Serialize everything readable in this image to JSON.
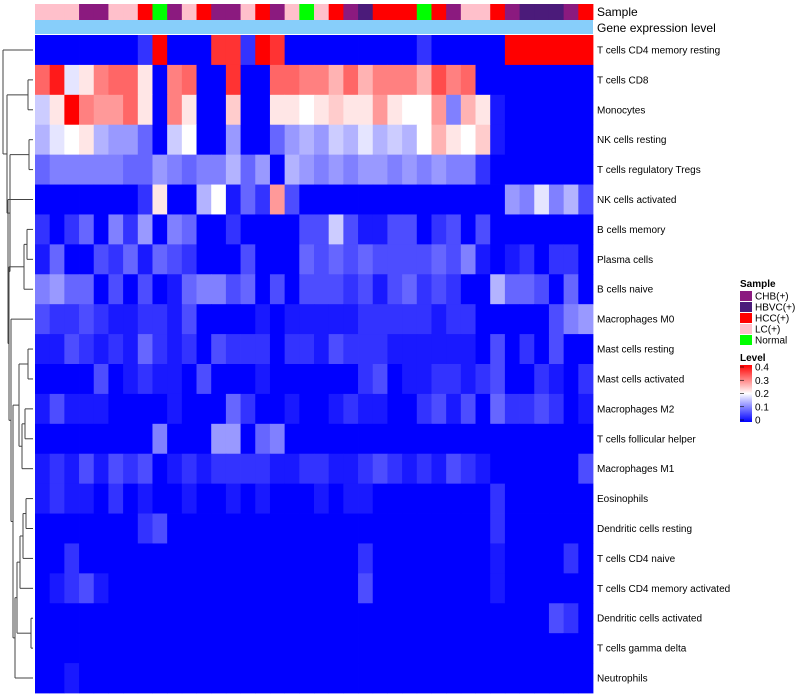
{
  "chart_data": {
    "type": "heatmap",
    "annotation_labels": [
      "Sample",
      "Gene expression level"
    ],
    "rows": [
      "T cells CD4 memory resting",
      "T cells CD8",
      "Monocytes",
      "NK cells resting",
      "T cells regulatory  Tregs",
      "NK cells activated",
      "B cells memory",
      "Plasma cells",
      "B cells naive",
      "Macrophages M0",
      "Mast cells resting",
      "Mast cells activated",
      "Macrophages M2",
      "T cells follicular helper",
      "Macrophages M1",
      "Eosinophils",
      "Dendritic cells resting",
      "T cells CD4 naive",
      "T cells CD4 memory activated",
      "Dendritic cells activated",
      "T cells gamma delta",
      "Neutrophils"
    ],
    "sample_types": [
      "LC(+)",
      "LC(+)",
      "LC(+)",
      "CHB(+)",
      "CHB(+)",
      "LC(+)",
      "LC(+)",
      "HCC(+)",
      "Normal",
      "CHB(+)",
      "LC(+)",
      "HCC(+)",
      "CHB(+)",
      "CHB(+)",
      "LC(+)",
      "HCC(+)",
      "CHB(+)",
      "LC(+)",
      "Normal",
      "LC(+)",
      "HCC(+)",
      "CHB(+)",
      "HBVC(+)",
      "HCC(+)",
      "HCC(+)",
      "HCC(+)",
      "Normal",
      "HCC(+)",
      "CHB(+)",
      "LC(+)",
      "LC(+)",
      "HCC(+)",
      "CHB(+)",
      "HBVC(+)",
      "HBVC(+)",
      "HBVC(+)",
      "CHB(+)",
      "HCC(+)"
    ],
    "values": [
      [
        0.0,
        0.0,
        0.0,
        0.0,
        0.0,
        0.0,
        0.0,
        0.04,
        0.4,
        0.0,
        0.0,
        0.0,
        0.36,
        0.36,
        0.04,
        0.4,
        0.36,
        0.0,
        0.0,
        0.0,
        0.0,
        0.0,
        0.0,
        0.0,
        0.0,
        0.0,
        0.04,
        0.0,
        0.0,
        0.0,
        0.0,
        0.0,
        0.4,
        0.4,
        0.4,
        0.4,
        0.4,
        0.4
      ],
      [
        0.32,
        0.38,
        0.18,
        0.22,
        0.3,
        0.32,
        0.32,
        0.22,
        0.0,
        0.3,
        0.32,
        0.0,
        0.0,
        0.36,
        0.0,
        0.0,
        0.32,
        0.32,
        0.3,
        0.3,
        0.26,
        0.32,
        0.26,
        0.3,
        0.3,
        0.3,
        0.26,
        0.34,
        0.3,
        0.32,
        0.0,
        0.0,
        0.0,
        0.0,
        0.0,
        0.0,
        0.0,
        0.0
      ],
      [
        0.16,
        0.22,
        0.4,
        0.3,
        0.28,
        0.28,
        0.32,
        0.22,
        0.0,
        0.3,
        0.22,
        0.0,
        0.0,
        0.24,
        0.0,
        0.0,
        0.22,
        0.22,
        0.2,
        0.22,
        0.24,
        0.22,
        0.22,
        0.28,
        0.22,
        0.2,
        0.2,
        0.28,
        0.1,
        0.26,
        0.22,
        0.02,
        0.0,
        0.0,
        0.0,
        0.0,
        0.0,
        0.0
      ],
      [
        0.14,
        0.18,
        0.2,
        0.22,
        0.14,
        0.12,
        0.12,
        0.08,
        0.0,
        0.16,
        0.2,
        0.0,
        0.0,
        0.12,
        0.0,
        0.0,
        0.08,
        0.12,
        0.14,
        0.12,
        0.16,
        0.14,
        0.18,
        0.14,
        0.16,
        0.14,
        0.2,
        0.26,
        0.22,
        0.2,
        0.24,
        0.02,
        0.0,
        0.0,
        0.0,
        0.0,
        0.0,
        0.0
      ],
      [
        0.08,
        0.1,
        0.1,
        0.1,
        0.1,
        0.1,
        0.08,
        0.08,
        0.12,
        0.1,
        0.08,
        0.1,
        0.1,
        0.14,
        0.08,
        0.12,
        0.0,
        0.14,
        0.12,
        0.1,
        0.12,
        0.1,
        0.12,
        0.12,
        0.1,
        0.12,
        0.1,
        0.12,
        0.1,
        0.1,
        0.04,
        0.0,
        0.0,
        0.0,
        0.0,
        0.0,
        0.0,
        0.0
      ],
      [
        0.0,
        0.0,
        0.0,
        0.0,
        0.0,
        0.0,
        0.0,
        0.04,
        0.22,
        0.0,
        0.0,
        0.14,
        0.2,
        0.02,
        0.08,
        0.04,
        0.28,
        0.06,
        0.0,
        0.0,
        0.0,
        0.0,
        0.0,
        0.0,
        0.0,
        0.0,
        0.0,
        0.0,
        0.0,
        0.0,
        0.0,
        0.0,
        0.12,
        0.1,
        0.18,
        0.1,
        0.14,
        0.06
      ],
      [
        0.04,
        0.0,
        0.04,
        0.08,
        0.0,
        0.1,
        0.04,
        0.12,
        0.0,
        0.1,
        0.08,
        0.0,
        0.0,
        0.04,
        0.0,
        0.0,
        0.0,
        0.0,
        0.06,
        0.06,
        0.16,
        0.06,
        0.02,
        0.02,
        0.06,
        0.06,
        0.0,
        0.04,
        0.06,
        0.0,
        0.06,
        0.0,
        0.0,
        0.0,
        0.0,
        0.0,
        0.0,
        0.0
      ],
      [
        0.02,
        0.08,
        0.0,
        0.0,
        0.06,
        0.04,
        0.08,
        0.02,
        0.08,
        0.06,
        0.04,
        0.0,
        0.0,
        0.0,
        0.06,
        0.0,
        0.0,
        0.0,
        0.08,
        0.06,
        0.08,
        0.06,
        0.08,
        0.06,
        0.06,
        0.06,
        0.06,
        0.08,
        0.06,
        0.1,
        0.02,
        0.0,
        0.02,
        0.04,
        0.0,
        0.04,
        0.04,
        0.0
      ],
      [
        0.1,
        0.12,
        0.08,
        0.08,
        0.0,
        0.06,
        0.0,
        0.06,
        0.0,
        0.02,
        0.08,
        0.1,
        0.1,
        0.06,
        0.08,
        0.0,
        0.06,
        0.0,
        0.06,
        0.06,
        0.06,
        0.04,
        0.06,
        0.02,
        0.06,
        0.08,
        0.04,
        0.06,
        0.04,
        0.0,
        0.0,
        0.14,
        0.08,
        0.08,
        0.06,
        0.0,
        0.08,
        0.0
      ],
      [
        0.06,
        0.04,
        0.04,
        0.06,
        0.04,
        0.02,
        0.02,
        0.04,
        0.04,
        0.02,
        0.06,
        0.0,
        0.0,
        0.0,
        0.0,
        0.02,
        0.0,
        0.02,
        0.02,
        0.02,
        0.02,
        0.02,
        0.04,
        0.04,
        0.04,
        0.04,
        0.04,
        0.02,
        0.04,
        0.04,
        0.0,
        0.0,
        0.0,
        0.0,
        0.0,
        0.06,
        0.1,
        0.12
      ],
      [
        0.02,
        0.02,
        0.06,
        0.04,
        0.02,
        0.04,
        0.02,
        0.08,
        0.04,
        0.02,
        0.04,
        0.0,
        0.06,
        0.04,
        0.04,
        0.04,
        0.0,
        0.04,
        0.04,
        0.02,
        0.06,
        0.04,
        0.04,
        0.04,
        0.02,
        0.02,
        0.02,
        0.02,
        0.02,
        0.02,
        0.0,
        0.06,
        0.0,
        0.04,
        0.0,
        0.06,
        0.0,
        0.0
      ],
      [
        0.0,
        0.0,
        0.0,
        0.0,
        0.06,
        0.0,
        0.02,
        0.04,
        0.02,
        0.02,
        0.0,
        0.06,
        0.0,
        0.0,
        0.0,
        0.02,
        0.0,
        0.0,
        0.0,
        0.0,
        0.0,
        0.0,
        0.04,
        0.06,
        0.0,
        0.02,
        0.02,
        0.04,
        0.04,
        0.02,
        0.04,
        0.06,
        0.0,
        0.0,
        0.04,
        0.02,
        0.0,
        0.04
      ],
      [
        0.02,
        0.06,
        0.02,
        0.02,
        0.02,
        0.0,
        0.0,
        0.0,
        0.0,
        0.02,
        0.0,
        0.0,
        0.0,
        0.08,
        0.04,
        0.0,
        0.0,
        0.02,
        0.0,
        0.0,
        0.02,
        0.04,
        0.02,
        0.02,
        0.0,
        0.0,
        0.04,
        0.06,
        0.02,
        0.06,
        0.0,
        0.08,
        0.04,
        0.04,
        0.06,
        0.04,
        0.0,
        0.02
      ],
      [
        0.0,
        0.0,
        0.0,
        0.0,
        0.0,
        0.0,
        0.0,
        0.0,
        0.1,
        0.0,
        0.0,
        0.0,
        0.12,
        0.12,
        0.0,
        0.08,
        0.1,
        0.0,
        0.0,
        0.0,
        0.0,
        0.0,
        0.0,
        0.0,
        0.0,
        0.0,
        0.0,
        0.0,
        0.0,
        0.0,
        0.0,
        0.0,
        0.0,
        0.0,
        0.0,
        0.0,
        0.0,
        0.0
      ],
      [
        0.02,
        0.04,
        0.02,
        0.06,
        0.02,
        0.06,
        0.04,
        0.06,
        0.0,
        0.02,
        0.04,
        0.02,
        0.04,
        0.04,
        0.04,
        0.04,
        0.02,
        0.02,
        0.04,
        0.04,
        0.02,
        0.02,
        0.04,
        0.06,
        0.04,
        0.02,
        0.04,
        0.02,
        0.06,
        0.04,
        0.02,
        0.0,
        0.0,
        0.0,
        0.0,
        0.0,
        0.0,
        0.06
      ],
      [
        0.02,
        0.04,
        0.02,
        0.02,
        0.0,
        0.04,
        0.0,
        0.02,
        0.0,
        0.0,
        0.02,
        0.0,
        0.0,
        0.02,
        0.0,
        0.02,
        0.0,
        0.0,
        0.0,
        0.02,
        0.0,
        0.02,
        0.02,
        0.0,
        0.0,
        0.0,
        0.0,
        0.0,
        0.0,
        0.0,
        0.0,
        0.04,
        0.0,
        0.0,
        0.0,
        0.0,
        0.0,
        0.0
      ],
      [
        0.0,
        0.0,
        0.0,
        0.0,
        0.0,
        0.0,
        0.0,
        0.04,
        0.06,
        0.0,
        0.0,
        0.0,
        0.0,
        0.0,
        0.0,
        0.0,
        0.0,
        0.0,
        0.0,
        0.0,
        0.0,
        0.0,
        0.0,
        0.0,
        0.0,
        0.0,
        0.0,
        0.0,
        0.0,
        0.0,
        0.0,
        0.04,
        0.0,
        0.0,
        0.0,
        0.0,
        0.0,
        0.0
      ],
      [
        0.0,
        0.0,
        0.04,
        0.0,
        0.0,
        0.0,
        0.0,
        0.0,
        0.0,
        0.0,
        0.0,
        0.0,
        0.0,
        0.0,
        0.0,
        0.0,
        0.0,
        0.0,
        0.0,
        0.0,
        0.0,
        0.0,
        0.04,
        0.0,
        0.0,
        0.0,
        0.0,
        0.0,
        0.0,
        0.0,
        0.0,
        0.02,
        0.0,
        0.0,
        0.0,
        0.0,
        0.04,
        0.0
      ],
      [
        0.0,
        0.02,
        0.04,
        0.06,
        0.02,
        0.0,
        0.0,
        0.0,
        0.0,
        0.0,
        0.0,
        0.0,
        0.0,
        0.0,
        0.0,
        0.0,
        0.0,
        0.0,
        0.0,
        0.0,
        0.0,
        0.0,
        0.06,
        0.0,
        0.0,
        0.0,
        0.0,
        0.0,
        0.0,
        0.0,
        0.0,
        0.02,
        0.0,
        0.0,
        0.0,
        0.0,
        0.0,
        0.0
      ],
      [
        0.0,
        0.0,
        0.0,
        0.0,
        0.0,
        0.0,
        0.0,
        0.0,
        0.0,
        0.0,
        0.0,
        0.0,
        0.0,
        0.0,
        0.0,
        0.0,
        0.0,
        0.0,
        0.0,
        0.0,
        0.0,
        0.0,
        0.0,
        0.0,
        0.0,
        0.0,
        0.0,
        0.0,
        0.0,
        0.0,
        0.0,
        0.0,
        0.0,
        0.0,
        0.0,
        0.06,
        0.04,
        0.0
      ],
      [
        0.0,
        0.0,
        0.0,
        0.0,
        0.0,
        0.0,
        0.0,
        0.0,
        0.0,
        0.0,
        0.0,
        0.0,
        0.0,
        0.0,
        0.0,
        0.0,
        0.0,
        0.0,
        0.0,
        0.0,
        0.0,
        0.0,
        0.0,
        0.0,
        0.0,
        0.0,
        0.0,
        0.0,
        0.0,
        0.0,
        0.0,
        0.0,
        0.0,
        0.0,
        0.0,
        0.0,
        0.0,
        0.0
      ],
      [
        0.0,
        0.0,
        0.02,
        0.0,
        0.0,
        0.0,
        0.0,
        0.0,
        0.0,
        0.0,
        0.0,
        0.0,
        0.0,
        0.0,
        0.0,
        0.0,
        0.0,
        0.0,
        0.0,
        0.0,
        0.0,
        0.0,
        0.0,
        0.0,
        0.0,
        0.0,
        0.0,
        0.0,
        0.0,
        0.0,
        0.0,
        0.0,
        0.0,
        0.0,
        0.0,
        0.0,
        0.0,
        0.0
      ]
    ],
    "sample_legend": {
      "title": "Sample",
      "items": [
        {
          "label": "CHB(+)",
          "color": "#8b1a7f"
        },
        {
          "label": "HBVC(+)",
          "color": "#4b1b7a"
        },
        {
          "label": "HCC(+)",
          "color": "#ff0000"
        },
        {
          "label": "LC(+)",
          "color": "#ffc0cb"
        },
        {
          "label": "Normal",
          "color": "#00ff00"
        }
      ]
    },
    "level_legend": {
      "title": "Level",
      "ticks": [
        "0.4",
        "0.3",
        "0.2",
        "0.1",
        "0"
      ],
      "range": [
        0,
        0.4
      ]
    },
    "gene_expression_bar_color": "#87cefa",
    "color_scale": {
      "low": "#0000ff",
      "mid": "#ffffff",
      "high": "#ff0000",
      "mid_value": 0.2
    }
  }
}
